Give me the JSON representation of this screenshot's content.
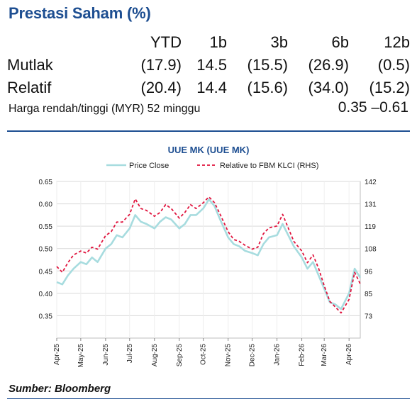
{
  "header": {
    "title": "Prestasi Saham (%)"
  },
  "performance": {
    "columns": [
      "YTD",
      "1b",
      "3b",
      "6b",
      "12b"
    ],
    "rows": [
      {
        "label": "Mutlak",
        "values": [
          "(17.9)",
          "14.5",
          "(15.5)",
          "(26.9)",
          "(0.5)"
        ]
      },
      {
        "label": "Relatif",
        "values": [
          "(20.4)",
          "14.4",
          "(15.6)",
          "(34.0)",
          "(15.2)"
        ]
      }
    ],
    "range_label": "Harga rendah/tinggi (MYR) 52 minggu",
    "range_value": "0.35 –0.61"
  },
  "colors": {
    "price": "#a7dcdf",
    "relative": "#e0153e",
    "accent": "#1d4e91",
    "grid": "#d9d9d9"
  },
  "chart_data": {
    "type": "line",
    "title": "UUE MK (UUE MK)",
    "legend_position": "top",
    "grid": true,
    "x_ticks": [
      "Apr-25",
      "May-25",
      "Jun-25",
      "Jul-25",
      "Aug-25",
      "Sep-25",
      "Oct-25",
      "Nov-25",
      "Dec-25",
      "Jan-26",
      "Feb-26",
      "Mar-26",
      "Apr-26"
    ],
    "y_left": {
      "ylim": [
        0.3,
        0.65
      ],
      "ticks": [
        "0.35",
        "0.40",
        "0.45",
        "0.50",
        "0.55",
        "0.60",
        "0.65"
      ]
    },
    "y_right": {
      "ylim": [
        61,
        142
      ],
      "ticks": [
        "73",
        "85",
        "96",
        "108",
        "119",
        "131",
        "142"
      ]
    },
    "series": [
      {
        "name": "Price Close",
        "axis": "left",
        "style": "solid",
        "points": [
          [
            "2025-04-01",
            0.425
          ],
          [
            "2025-04-08",
            0.42
          ],
          [
            "2025-04-15",
            0.44
          ],
          [
            "2025-04-22",
            0.455
          ],
          [
            "2025-05-01",
            0.47
          ],
          [
            "2025-05-08",
            0.465
          ],
          [
            "2025-05-15",
            0.48
          ],
          [
            "2025-05-22",
            0.47
          ],
          [
            "2025-06-01",
            0.5
          ],
          [
            "2025-06-08",
            0.51
          ],
          [
            "2025-06-15",
            0.53
          ],
          [
            "2025-06-22",
            0.525
          ],
          [
            "2025-07-01",
            0.545
          ],
          [
            "2025-07-08",
            0.575
          ],
          [
            "2025-07-15",
            0.56
          ],
          [
            "2025-07-22",
            0.555
          ],
          [
            "2025-08-01",
            0.545
          ],
          [
            "2025-08-08",
            0.56
          ],
          [
            "2025-08-15",
            0.57
          ],
          [
            "2025-08-22",
            0.565
          ],
          [
            "2025-09-01",
            0.545
          ],
          [
            "2025-09-08",
            0.555
          ],
          [
            "2025-09-15",
            0.575
          ],
          [
            "2025-09-22",
            0.575
          ],
          [
            "2025-10-01",
            0.59
          ],
          [
            "2025-10-08",
            0.61
          ],
          [
            "2025-10-15",
            0.595
          ],
          [
            "2025-10-22",
            0.565
          ],
          [
            "2025-11-01",
            0.525
          ],
          [
            "2025-11-08",
            0.51
          ],
          [
            "2025-11-15",
            0.505
          ],
          [
            "2025-11-22",
            0.495
          ],
          [
            "2025-12-01",
            0.49
          ],
          [
            "2025-12-08",
            0.485
          ],
          [
            "2025-12-15",
            0.51
          ],
          [
            "2025-12-22",
            0.525
          ],
          [
            "2026-01-01",
            0.53
          ],
          [
            "2026-01-08",
            0.555
          ],
          [
            "2026-01-15",
            0.53
          ],
          [
            "2026-01-22",
            0.505
          ],
          [
            "2026-02-01",
            0.48
          ],
          [
            "2026-02-08",
            0.455
          ],
          [
            "2026-02-15",
            0.47
          ],
          [
            "2026-02-22",
            0.44
          ],
          [
            "2026-03-01",
            0.41
          ],
          [
            "2026-03-08",
            0.38
          ],
          [
            "2026-03-15",
            0.375
          ],
          [
            "2026-03-22",
            0.365
          ],
          [
            "2026-04-01",
            0.4
          ],
          [
            "2026-04-08",
            0.455
          ],
          [
            "2026-04-15",
            0.435
          ]
        ]
      },
      {
        "name": "Relative to FBM KLCI (RHS)",
        "axis": "right",
        "style": "dashed",
        "points": [
          [
            "2025-04-01",
            98
          ],
          [
            "2025-04-08",
            95
          ],
          [
            "2025-04-15",
            100
          ],
          [
            "2025-04-22",
            104
          ],
          [
            "2025-05-01",
            106
          ],
          [
            "2025-05-08",
            105
          ],
          [
            "2025-05-15",
            108
          ],
          [
            "2025-05-22",
            107
          ],
          [
            "2025-06-01",
            114
          ],
          [
            "2025-06-08",
            116
          ],
          [
            "2025-06-15",
            121
          ],
          [
            "2025-06-22",
            121
          ],
          [
            "2025-07-01",
            125
          ],
          [
            "2025-07-08",
            133
          ],
          [
            "2025-07-15",
            128
          ],
          [
            "2025-07-22",
            127
          ],
          [
            "2025-08-01",
            124
          ],
          [
            "2025-08-08",
            126
          ],
          [
            "2025-08-15",
            130
          ],
          [
            "2025-08-22",
            128
          ],
          [
            "2025-09-01",
            123
          ],
          [
            "2025-09-08",
            126
          ],
          [
            "2025-09-15",
            130
          ],
          [
            "2025-09-22",
            128
          ],
          [
            "2025-10-01",
            131
          ],
          [
            "2025-10-08",
            134
          ],
          [
            "2025-10-15",
            131
          ],
          [
            "2025-10-22",
            125
          ],
          [
            "2025-11-01",
            116
          ],
          [
            "2025-11-08",
            112
          ],
          [
            "2025-11-15",
            111
          ],
          [
            "2025-11-22",
            109
          ],
          [
            "2025-12-01",
            107
          ],
          [
            "2025-12-08",
            108
          ],
          [
            "2025-12-15",
            115
          ],
          [
            "2025-12-22",
            118
          ],
          [
            "2026-01-01",
            119
          ],
          [
            "2026-01-08",
            125
          ],
          [
            "2026-01-15",
            118
          ],
          [
            "2026-01-22",
            111
          ],
          [
            "2026-02-01",
            106
          ],
          [
            "2026-02-08",
            100
          ],
          [
            "2026-02-15",
            104
          ],
          [
            "2026-02-22",
            97
          ],
          [
            "2026-03-01",
            88
          ],
          [
            "2026-03-08",
            80
          ],
          [
            "2026-03-15",
            77
          ],
          [
            "2026-03-22",
            74
          ],
          [
            "2026-04-01",
            81
          ],
          [
            "2026-04-08",
            95
          ],
          [
            "2026-04-15",
            89
          ]
        ]
      }
    ]
  },
  "source": "Sumber: Bloomberg"
}
